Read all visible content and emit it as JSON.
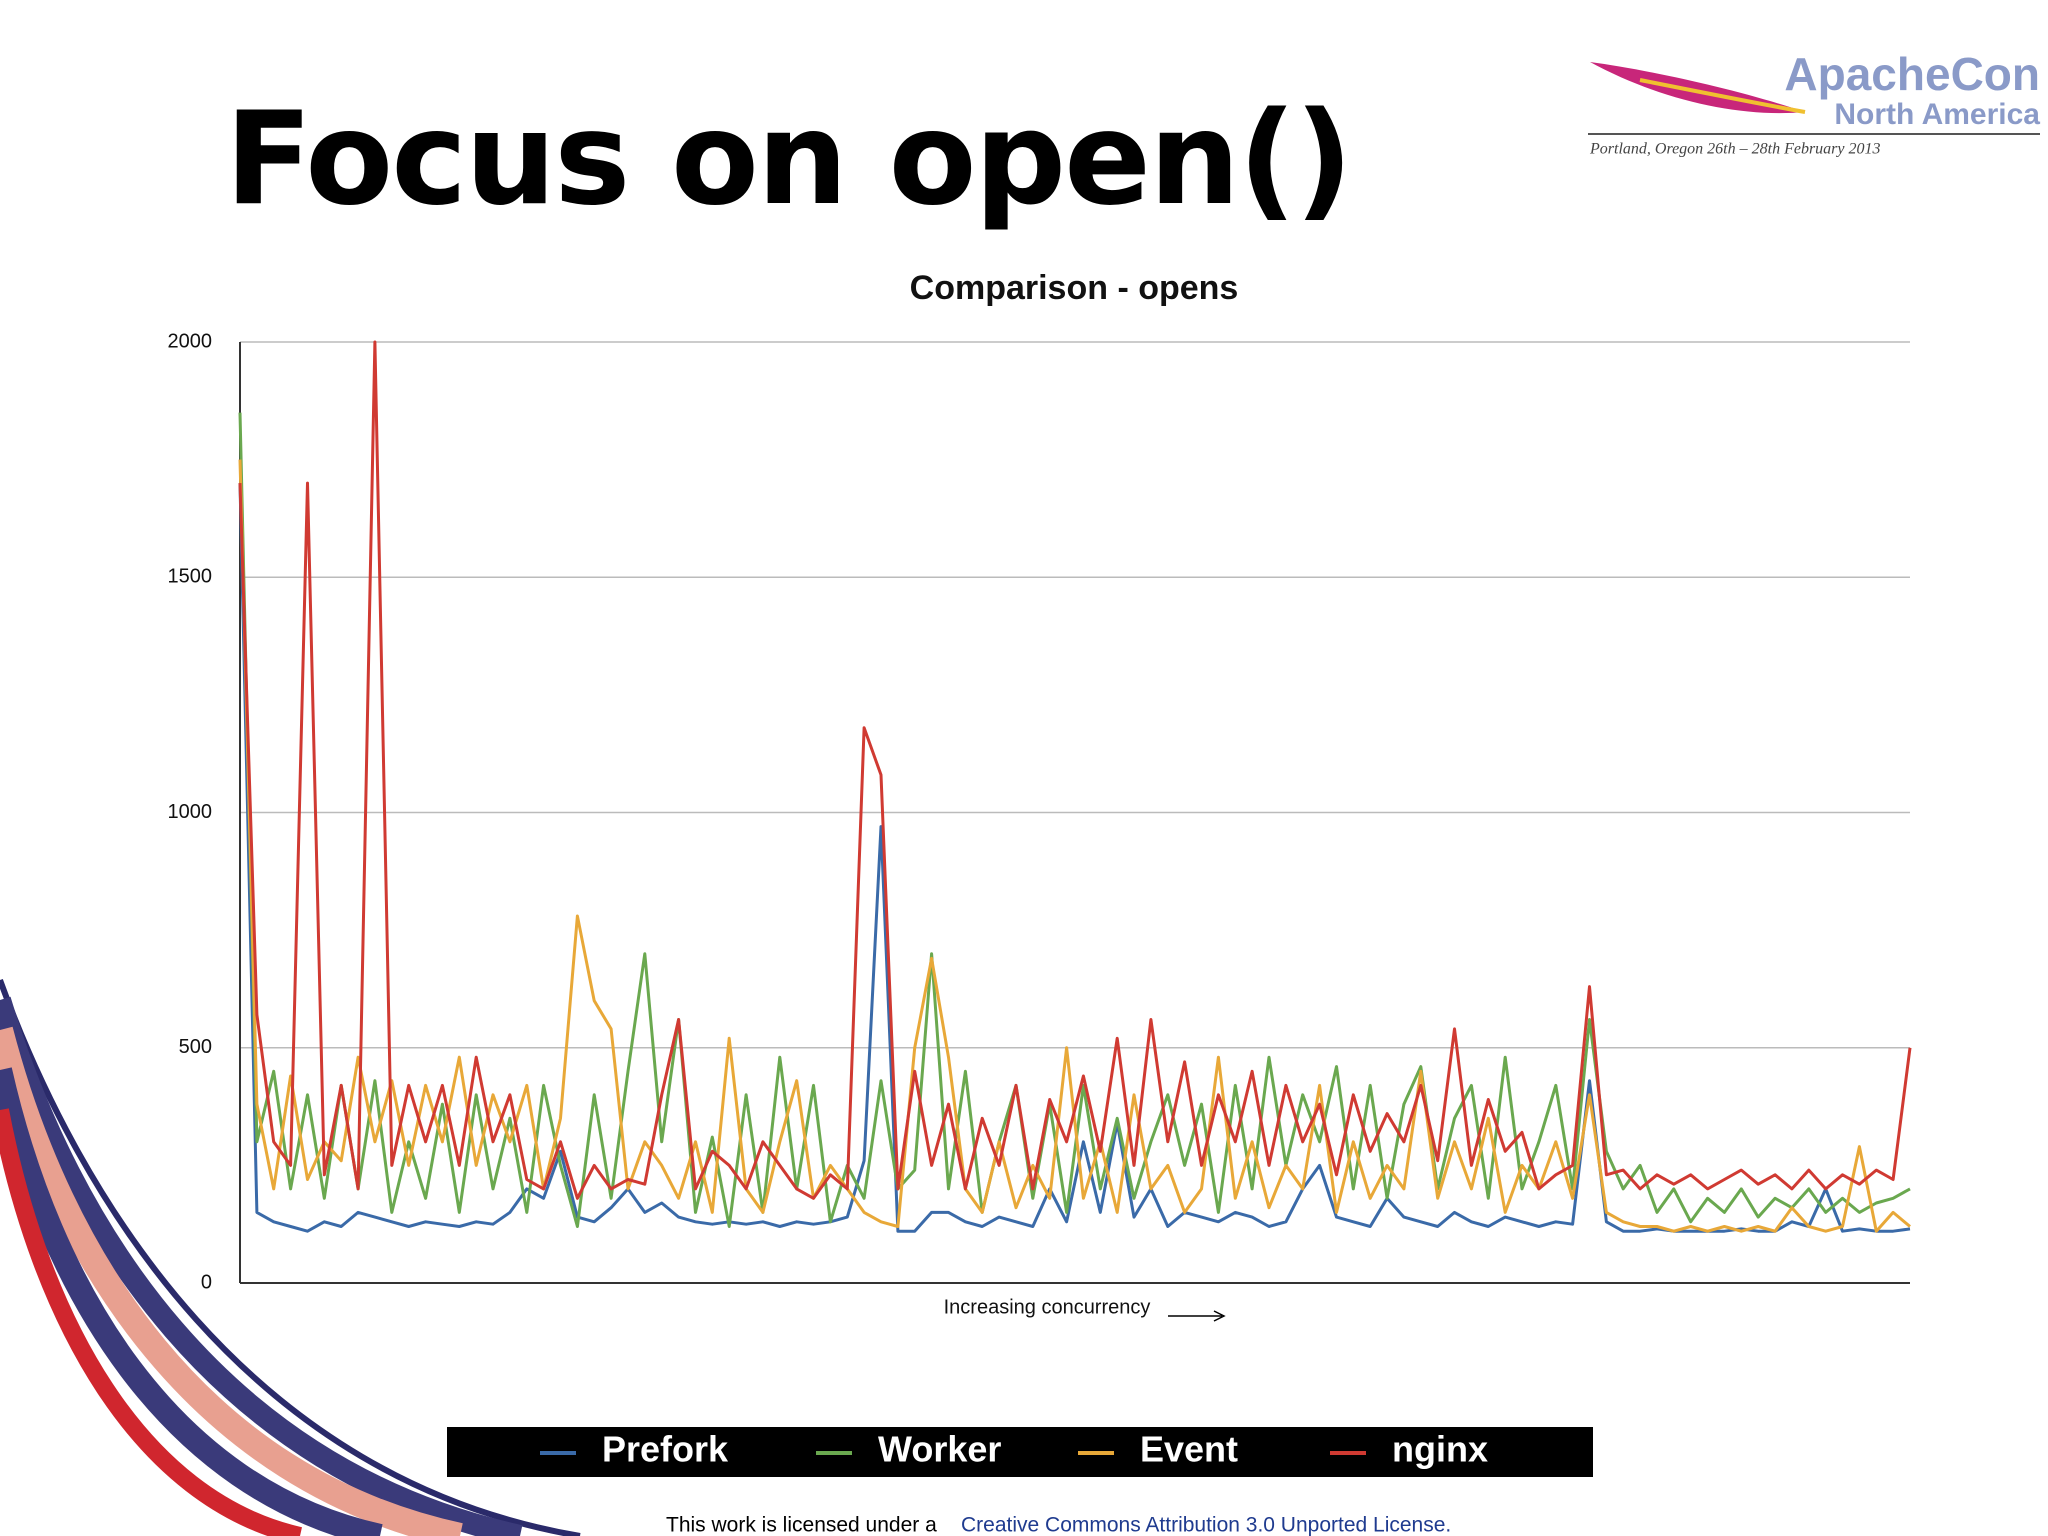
{
  "header": {
    "title": "Focus on open()",
    "logo": {
      "name": "ApacheCon",
      "region": "North America",
      "event": "Portland, Oregon 26th – 28th February 2013"
    }
  },
  "chart_data": {
    "type": "line",
    "title": "Comparison - opens",
    "x_label": "Increasing concurrency",
    "ylim": [
      0,
      2000
    ],
    "yticks": [
      0,
      500,
      1000,
      1500,
      2000
    ],
    "grid": true,
    "series": [
      {
        "name": "Prefork",
        "color": "#3a6aa8",
        "values": [
          1700,
          150,
          130,
          120,
          110,
          130,
          120,
          150,
          140,
          130,
          120,
          130,
          125,
          120,
          130,
          125,
          150,
          200,
          180,
          280,
          140,
          130,
          160,
          200,
          150,
          170,
          140,
          130,
          125,
          130,
          125,
          130,
          120,
          130,
          125,
          130,
          140,
          260,
          970,
          110,
          110,
          150,
          150,
          130,
          120,
          140,
          130,
          120,
          200,
          130,
          300,
          150,
          340,
          140,
          200,
          120,
          150,
          140,
          130,
          150,
          140,
          120,
          130,
          200,
          250,
          140,
          130,
          120,
          180,
          140,
          130,
          120,
          150,
          130,
          120,
          140,
          130,
          120,
          130,
          125,
          430,
          130,
          110,
          110,
          115,
          110,
          110,
          110,
          110,
          115,
          110,
          110,
          130,
          120,
          200,
          110,
          115,
          110,
          110,
          115
        ]
      },
      {
        "name": "Worker",
        "color": "#6aa84f",
        "values": [
          1850,
          300,
          450,
          200,
          400,
          180,
          420,
          200,
          430,
          150,
          300,
          180,
          380,
          150,
          400,
          200,
          350,
          150,
          420,
          250,
          120,
          400,
          180,
          450,
          700,
          300,
          560,
          150,
          310,
          120,
          400,
          150,
          480,
          200,
          420,
          130,
          250,
          180,
          430,
          200,
          240,
          700,
          200,
          450,
          150,
          300,
          420,
          180,
          380,
          150,
          420,
          200,
          350,
          180,
          300,
          400,
          250,
          380,
          150,
          420,
          200,
          480,
          250,
          400,
          300,
          460,
          200,
          420,
          180,
          380,
          460,
          200,
          350,
          420,
          180,
          480,
          200,
          300,
          420,
          200,
          560,
          280,
          200,
          250,
          150,
          200,
          130,
          180,
          150,
          200,
          140,
          180,
          160,
          200,
          150,
          180,
          150,
          170,
          180,
          200
        ]
      },
      {
        "name": "Event",
        "color": "#e8a838",
        "values": [
          1750,
          380,
          200,
          440,
          220,
          300,
          260,
          480,
          300,
          430,
          250,
          420,
          300,
          480,
          250,
          400,
          300,
          420,
          200,
          350,
          780,
          600,
          540,
          200,
          300,
          250,
          180,
          300,
          150,
          520,
          200,
          150,
          300,
          430,
          180,
          250,
          200,
          150,
          130,
          120,
          500,
          690,
          480,
          200,
          150,
          300,
          160,
          250,
          180,
          500,
          180,
          300,
          150,
          400,
          200,
          250,
          150,
          200,
          480,
          180,
          300,
          160,
          250,
          200,
          420,
          150,
          300,
          180,
          250,
          200,
          450,
          180,
          300,
          200,
          350,
          150,
          250,
          200,
          300,
          180,
          400,
          150,
          130,
          120,
          120,
          110,
          120,
          110,
          120,
          110,
          120,
          110,
          160,
          120,
          110,
          120,
          290,
          110,
          150,
          120
        ]
      },
      {
        "name": "nginx",
        "color": "#d03a32",
        "values": [
          1700,
          570,
          300,
          250,
          1700,
          230,
          420,
          200,
          2000,
          250,
          420,
          300,
          420,
          250,
          480,
          300,
          400,
          220,
          200,
          300,
          180,
          250,
          200,
          220,
          210,
          400,
          560,
          200,
          280,
          250,
          200,
          300,
          250,
          200,
          180,
          230,
          200,
          1180,
          1080,
          200,
          450,
          250,
          380,
          200,
          350,
          250,
          420,
          200,
          390,
          300,
          440,
          280,
          520,
          250,
          560,
          300,
          470,
          250,
          400,
          300,
          450,
          250,
          420,
          300,
          380,
          230,
          400,
          280,
          360,
          300,
          420,
          260,
          540,
          250,
          390,
          280,
          320,
          200,
          230,
          250,
          630,
          230,
          240,
          200,
          230,
          210,
          230,
          200,
          220,
          240,
          210,
          230,
          200,
          240,
          200,
          230,
          210,
          240,
          220,
          500
        ]
      }
    ]
  },
  "footer": {
    "text": "This work is licensed under a",
    "link": "Creative Commons Attribution 3.0 Unported License."
  }
}
